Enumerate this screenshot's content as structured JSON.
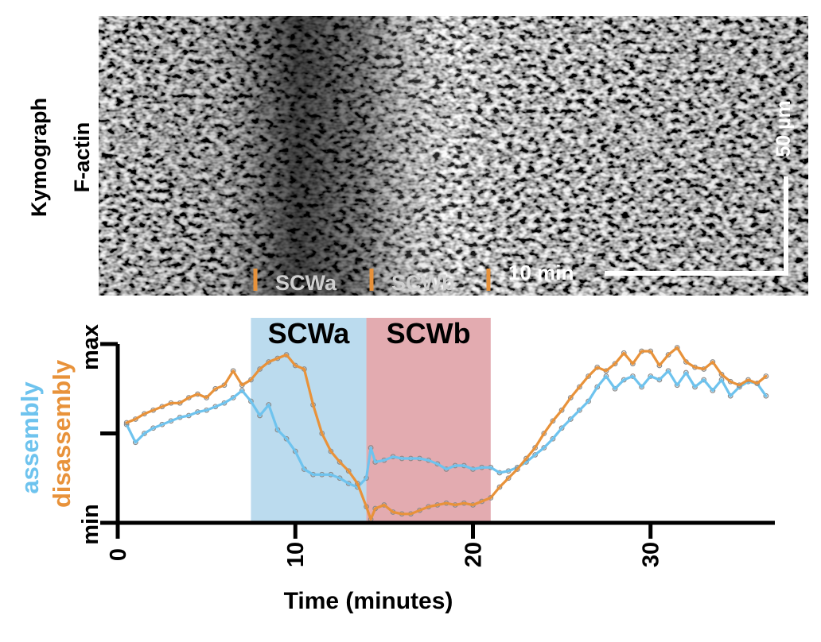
{
  "kymograph": {
    "label_line1": "Kymograph",
    "label_line2": "F-actin",
    "scale_vertical": "50 µm",
    "scale_horizontal": "10 min",
    "markers": [
      "SCWa",
      "SCWb"
    ],
    "marker_color": "#E8923A",
    "marker_text_color": "#CFCFCF"
  },
  "chart_data": {
    "type": "line",
    "xlabel": "Time (minutes)",
    "ylabel_series": [
      "assembly",
      "disassembly"
    ],
    "ytick_labels": [
      "min",
      "max"
    ],
    "xlim": [
      0,
      37
    ],
    "ylim": [
      0,
      1
    ],
    "xticks": [
      0,
      10,
      20,
      30
    ],
    "regions": [
      {
        "label": "SCWa",
        "x": [
          7.5,
          14.0
        ],
        "color": "#BBDBEE"
      },
      {
        "label": "SCWb",
        "x": [
          14.0,
          21.0
        ],
        "color": "#E3ABB0"
      }
    ],
    "series": [
      {
        "name": "assembly",
        "color": "#6EC3EE",
        "x": [
          0.5,
          1,
          1.5,
          2,
          2.5,
          3,
          3.5,
          4,
          4.5,
          5,
          5.5,
          6,
          6.5,
          7,
          7.5,
          8,
          8.5,
          9,
          9.5,
          10,
          10.5,
          11,
          11.5,
          12,
          12.5,
          13,
          13.5,
          14,
          14.25,
          14.5,
          15,
          15.5,
          16,
          16.5,
          17,
          17.5,
          18,
          18.5,
          19,
          19.5,
          20,
          20.5,
          21,
          21.5,
          22,
          22.5,
          23,
          23.5,
          24,
          24.5,
          25,
          25.5,
          26,
          26.5,
          27,
          27.5,
          28,
          28.5,
          29,
          29.5,
          30,
          30.5,
          31,
          31.5,
          32,
          32.5,
          33,
          33.5,
          34,
          34.5,
          35,
          35.5,
          36,
          36.5
        ],
        "y": [
          0.55,
          0.45,
          0.5,
          0.53,
          0.55,
          0.57,
          0.59,
          0.6,
          0.62,
          0.63,
          0.65,
          0.67,
          0.7,
          0.74,
          0.68,
          0.6,
          0.66,
          0.52,
          0.47,
          0.4,
          0.3,
          0.27,
          0.27,
          0.27,
          0.25,
          0.22,
          0.2,
          0.25,
          0.42,
          0.34,
          0.35,
          0.37,
          0.36,
          0.36,
          0.36,
          0.35,
          0.33,
          0.3,
          0.32,
          0.32,
          0.3,
          0.31,
          0.31,
          0.28,
          0.29,
          0.31,
          0.34,
          0.38,
          0.42,
          0.47,
          0.53,
          0.58,
          0.63,
          0.68,
          0.76,
          0.82,
          0.75,
          0.8,
          0.82,
          0.76,
          0.82,
          0.8,
          0.85,
          0.77,
          0.84,
          0.76,
          0.8,
          0.74,
          0.8,
          0.71,
          0.76,
          0.79,
          0.78,
          0.71
        ]
      },
      {
        "name": "disassembly",
        "color": "#E8923A",
        "x": [
          0.5,
          1,
          1.5,
          2,
          2.5,
          3,
          3.5,
          4,
          4.5,
          5,
          5.5,
          6,
          6.5,
          7,
          7.5,
          8,
          8.5,
          9,
          9.5,
          10,
          10.5,
          11,
          11.5,
          12,
          12.5,
          13,
          13.5,
          14,
          14.25,
          14.5,
          15,
          15.5,
          16,
          16.5,
          17,
          17.5,
          18,
          18.5,
          19,
          19.5,
          20,
          20.5,
          21,
          21.5,
          22,
          22.5,
          23,
          23.5,
          24,
          24.5,
          25,
          25.5,
          26,
          26.5,
          27,
          27.5,
          28,
          28.5,
          29,
          29.5,
          30,
          30.5,
          31,
          31.5,
          32,
          32.5,
          33,
          33.5,
          34,
          34.5,
          35,
          35.5,
          36,
          36.5
        ],
        "y": [
          0.56,
          0.58,
          0.61,
          0.63,
          0.65,
          0.67,
          0.67,
          0.7,
          0.72,
          0.7,
          0.75,
          0.77,
          0.85,
          0.77,
          0.8,
          0.86,
          0.9,
          0.92,
          0.94,
          0.88,
          0.86,
          0.66,
          0.5,
          0.4,
          0.34,
          0.29,
          0.22,
          0.09,
          0.02,
          0.08,
          0.1,
          0.06,
          0.05,
          0.05,
          0.07,
          0.09,
          0.1,
          0.11,
          0.1,
          0.11,
          0.1,
          0.12,
          0.14,
          0.2,
          0.25,
          0.3,
          0.36,
          0.42,
          0.5,
          0.57,
          0.63,
          0.7,
          0.76,
          0.82,
          0.87,
          0.85,
          0.89,
          0.95,
          0.89,
          0.96,
          0.96,
          0.88,
          0.94,
          0.98,
          0.9,
          0.87,
          0.86,
          0.9,
          0.83,
          0.79,
          0.77,
          0.8,
          0.78,
          0.82
        ]
      }
    ]
  }
}
